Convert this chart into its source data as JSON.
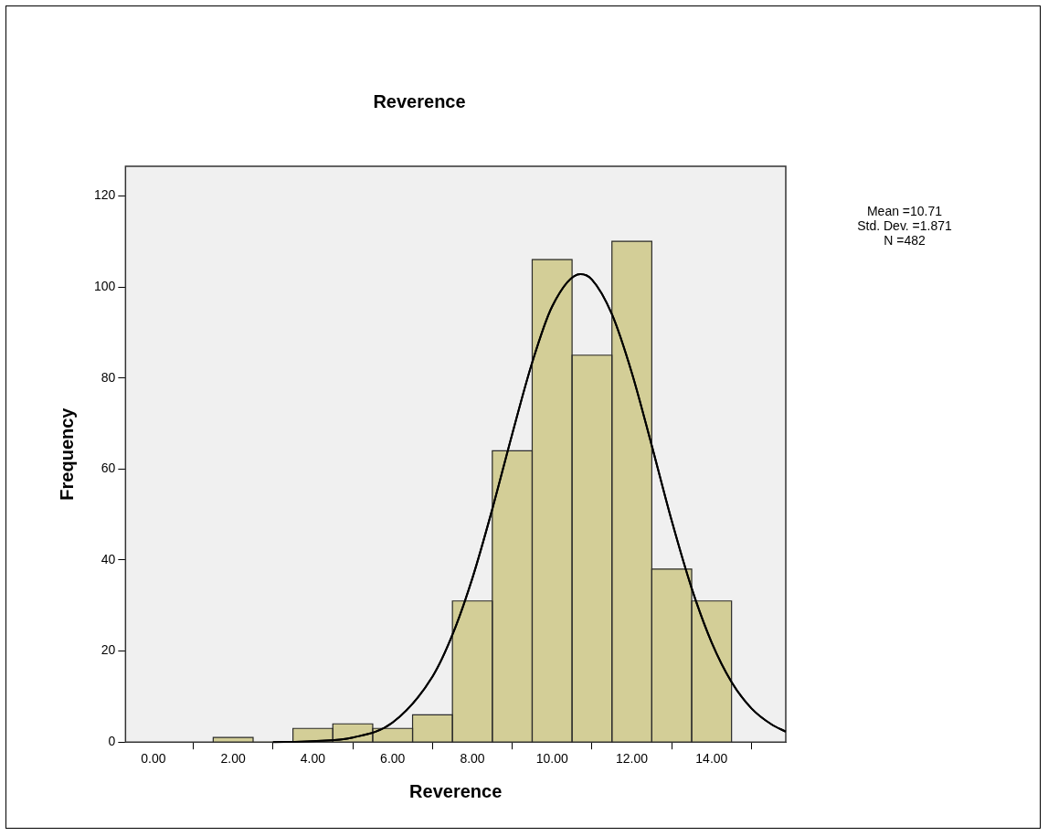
{
  "chart_data": {
    "type": "histogram",
    "title": "Reverence",
    "xlabel": "Reverence",
    "ylabel": "Frequency",
    "bins": [
      1.5,
      2.5,
      3.5,
      4.5,
      5.5,
      6.5,
      7.5,
      8.5,
      9.5,
      10.5,
      11.5,
      12.5,
      13.5,
      14.5
    ],
    "values": [
      1,
      0,
      3,
      4,
      3,
      6,
      31,
      64,
      106,
      85,
      110,
      38,
      31
    ],
    "color": "#d3ce97",
    "series": [
      {
        "type": "line",
        "color": "#000000",
        "x": [
          3,
          4,
          5,
          6,
          7,
          7.5,
          8,
          8.5,
          9,
          9.5,
          10,
          10.71,
          11,
          11.5,
          12,
          12.5,
          13,
          13.5,
          14,
          14.5,
          15,
          15.5,
          15.86
        ],
        "values": [
          0,
          0.2,
          1,
          4.3,
          14.4,
          23.6,
          36,
          51.2,
          67.7,
          83.4,
          95.7,
          102.8,
          101.6,
          94,
          81.1,
          65.1,
          48.6,
          33.8,
          21.9,
          13.2,
          7.4,
          3.9,
          2.3
        ]
      }
    ],
    "xlim": [
      -0.7,
      15.86
    ],
    "xticks": [
      {
        "value": 0,
        "label": "0.00"
      },
      {
        "value": 2,
        "label": "2.00"
      },
      {
        "value": 4,
        "label": "4.00"
      },
      {
        "value": 6,
        "label": "6.00"
      },
      {
        "value": 8,
        "label": "8.00"
      },
      {
        "value": 10,
        "label": "10.00"
      },
      {
        "value": 12,
        "label": "12.00"
      },
      {
        "value": 14,
        "label": "14.00"
      }
    ],
    "ylim": [
      0,
      126.5
    ],
    "yticks": [
      0,
      20,
      40,
      60,
      80,
      100,
      120
    ],
    "annotations": [
      "Mean =10.71",
      "Std. Dev. =1.871",
      "N =482"
    ]
  }
}
